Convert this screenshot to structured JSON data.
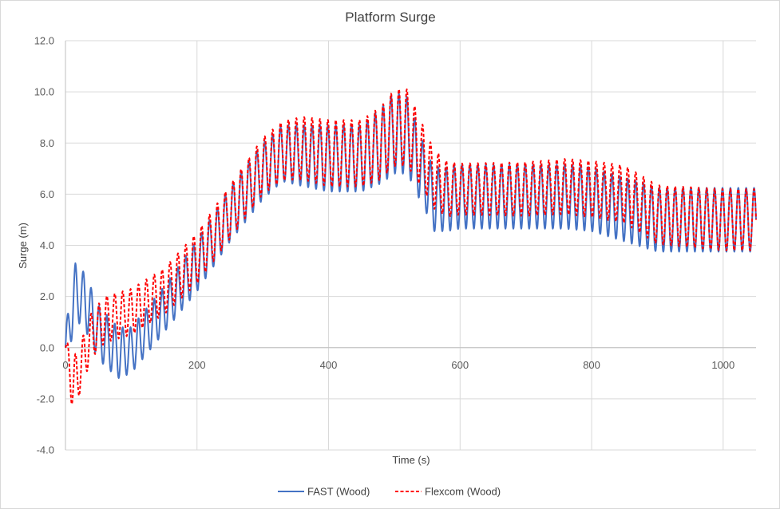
{
  "chart_data": {
    "type": "line",
    "title": "Platform Surge",
    "xlabel": "Time (s)",
    "ylabel": "Surge (m)",
    "xlim": [
      0,
      1050
    ],
    "ylim": [
      -4,
      12
    ],
    "x_ticks": [
      0,
      200,
      400,
      600,
      800,
      1000
    ],
    "x_tick_labels": [
      "0",
      "200",
      "400",
      "600",
      "800",
      "1000"
    ],
    "y_ticks": [
      -4,
      -2,
      0,
      2,
      4,
      6,
      8,
      10,
      12
    ],
    "y_tick_labels": [
      "-4.0",
      "-2.0",
      "0.0",
      "2.0",
      "4.0",
      "6.0",
      "8.0",
      "10.0",
      "12.0"
    ],
    "grid": true,
    "legend_position": "bottom",
    "oscillation_period_s": 12,
    "series": [
      {
        "name": "FAST (Wood)",
        "color": "#4472C4",
        "style": "solid",
        "mean_x": [
          0,
          15,
          30,
          50,
          80,
          100,
          150,
          200,
          250,
          300,
          330,
          360,
          400,
          450,
          480,
          500,
          520,
          540,
          560,
          580,
          600,
          700,
          760,
          800,
          850,
          900,
          1000,
          1050
        ],
        "mean_y": [
          0,
          2.2,
          1.8,
          0.6,
          -0.2,
          -0.1,
          1.5,
          3.2,
          5.2,
          6.9,
          7.6,
          7.5,
          7.4,
          7.4,
          7.9,
          8.4,
          8.3,
          7.0,
          5.8,
          5.8,
          5.9,
          5.9,
          5.9,
          5.8,
          5.4,
          5.0,
          5.0,
          5.0
        ],
        "amp_x": [
          0,
          10,
          30,
          80,
          100,
          150,
          200,
          280,
          330,
          400,
          450,
          500,
          520,
          550,
          560,
          600,
          800,
          1000,
          1050
        ],
        "amp_y": [
          0.7,
          1.1,
          1.1,
          1.0,
          0.9,
          0.9,
          1.0,
          1.1,
          1.1,
          1.3,
          1.3,
          1.6,
          1.5,
          1.2,
          1.25,
          1.25,
          1.25,
          1.25,
          1.25
        ]
      },
      {
        "name": "Flexcom (Wood)",
        "color": "#FF0000",
        "style": "dashed",
        "mean_x": [
          0,
          5,
          12,
          25,
          40,
          60,
          100,
          150,
          200,
          250,
          300,
          330,
          360,
          400,
          450,
          480,
          500,
          520,
          540,
          560,
          580,
          600,
          700,
          760,
          800,
          850,
          900,
          1000,
          1050
        ],
        "mean_y": [
          0,
          -0.6,
          -1.5,
          -0.6,
          0.5,
          1.1,
          1.4,
          2.2,
          3.5,
          5.3,
          7.1,
          7.7,
          7.8,
          7.6,
          7.6,
          8.0,
          8.6,
          8.6,
          7.6,
          6.6,
          6.2,
          6.2,
          6.2,
          6.3,
          6.2,
          6.0,
          5.2,
          5.0,
          5.0
        ],
        "amp_x": [
          0,
          10,
          30,
          60,
          100,
          150,
          200,
          300,
          400,
          450,
          500,
          520,
          550,
          600,
          800,
          1000,
          1050
        ],
        "amp_y": [
          0.3,
          1.1,
          0.9,
          0.9,
          0.9,
          0.9,
          1.0,
          1.1,
          1.3,
          1.3,
          1.5,
          1.5,
          1.2,
          1.0,
          1.1,
          1.2,
          1.2
        ]
      }
    ]
  }
}
